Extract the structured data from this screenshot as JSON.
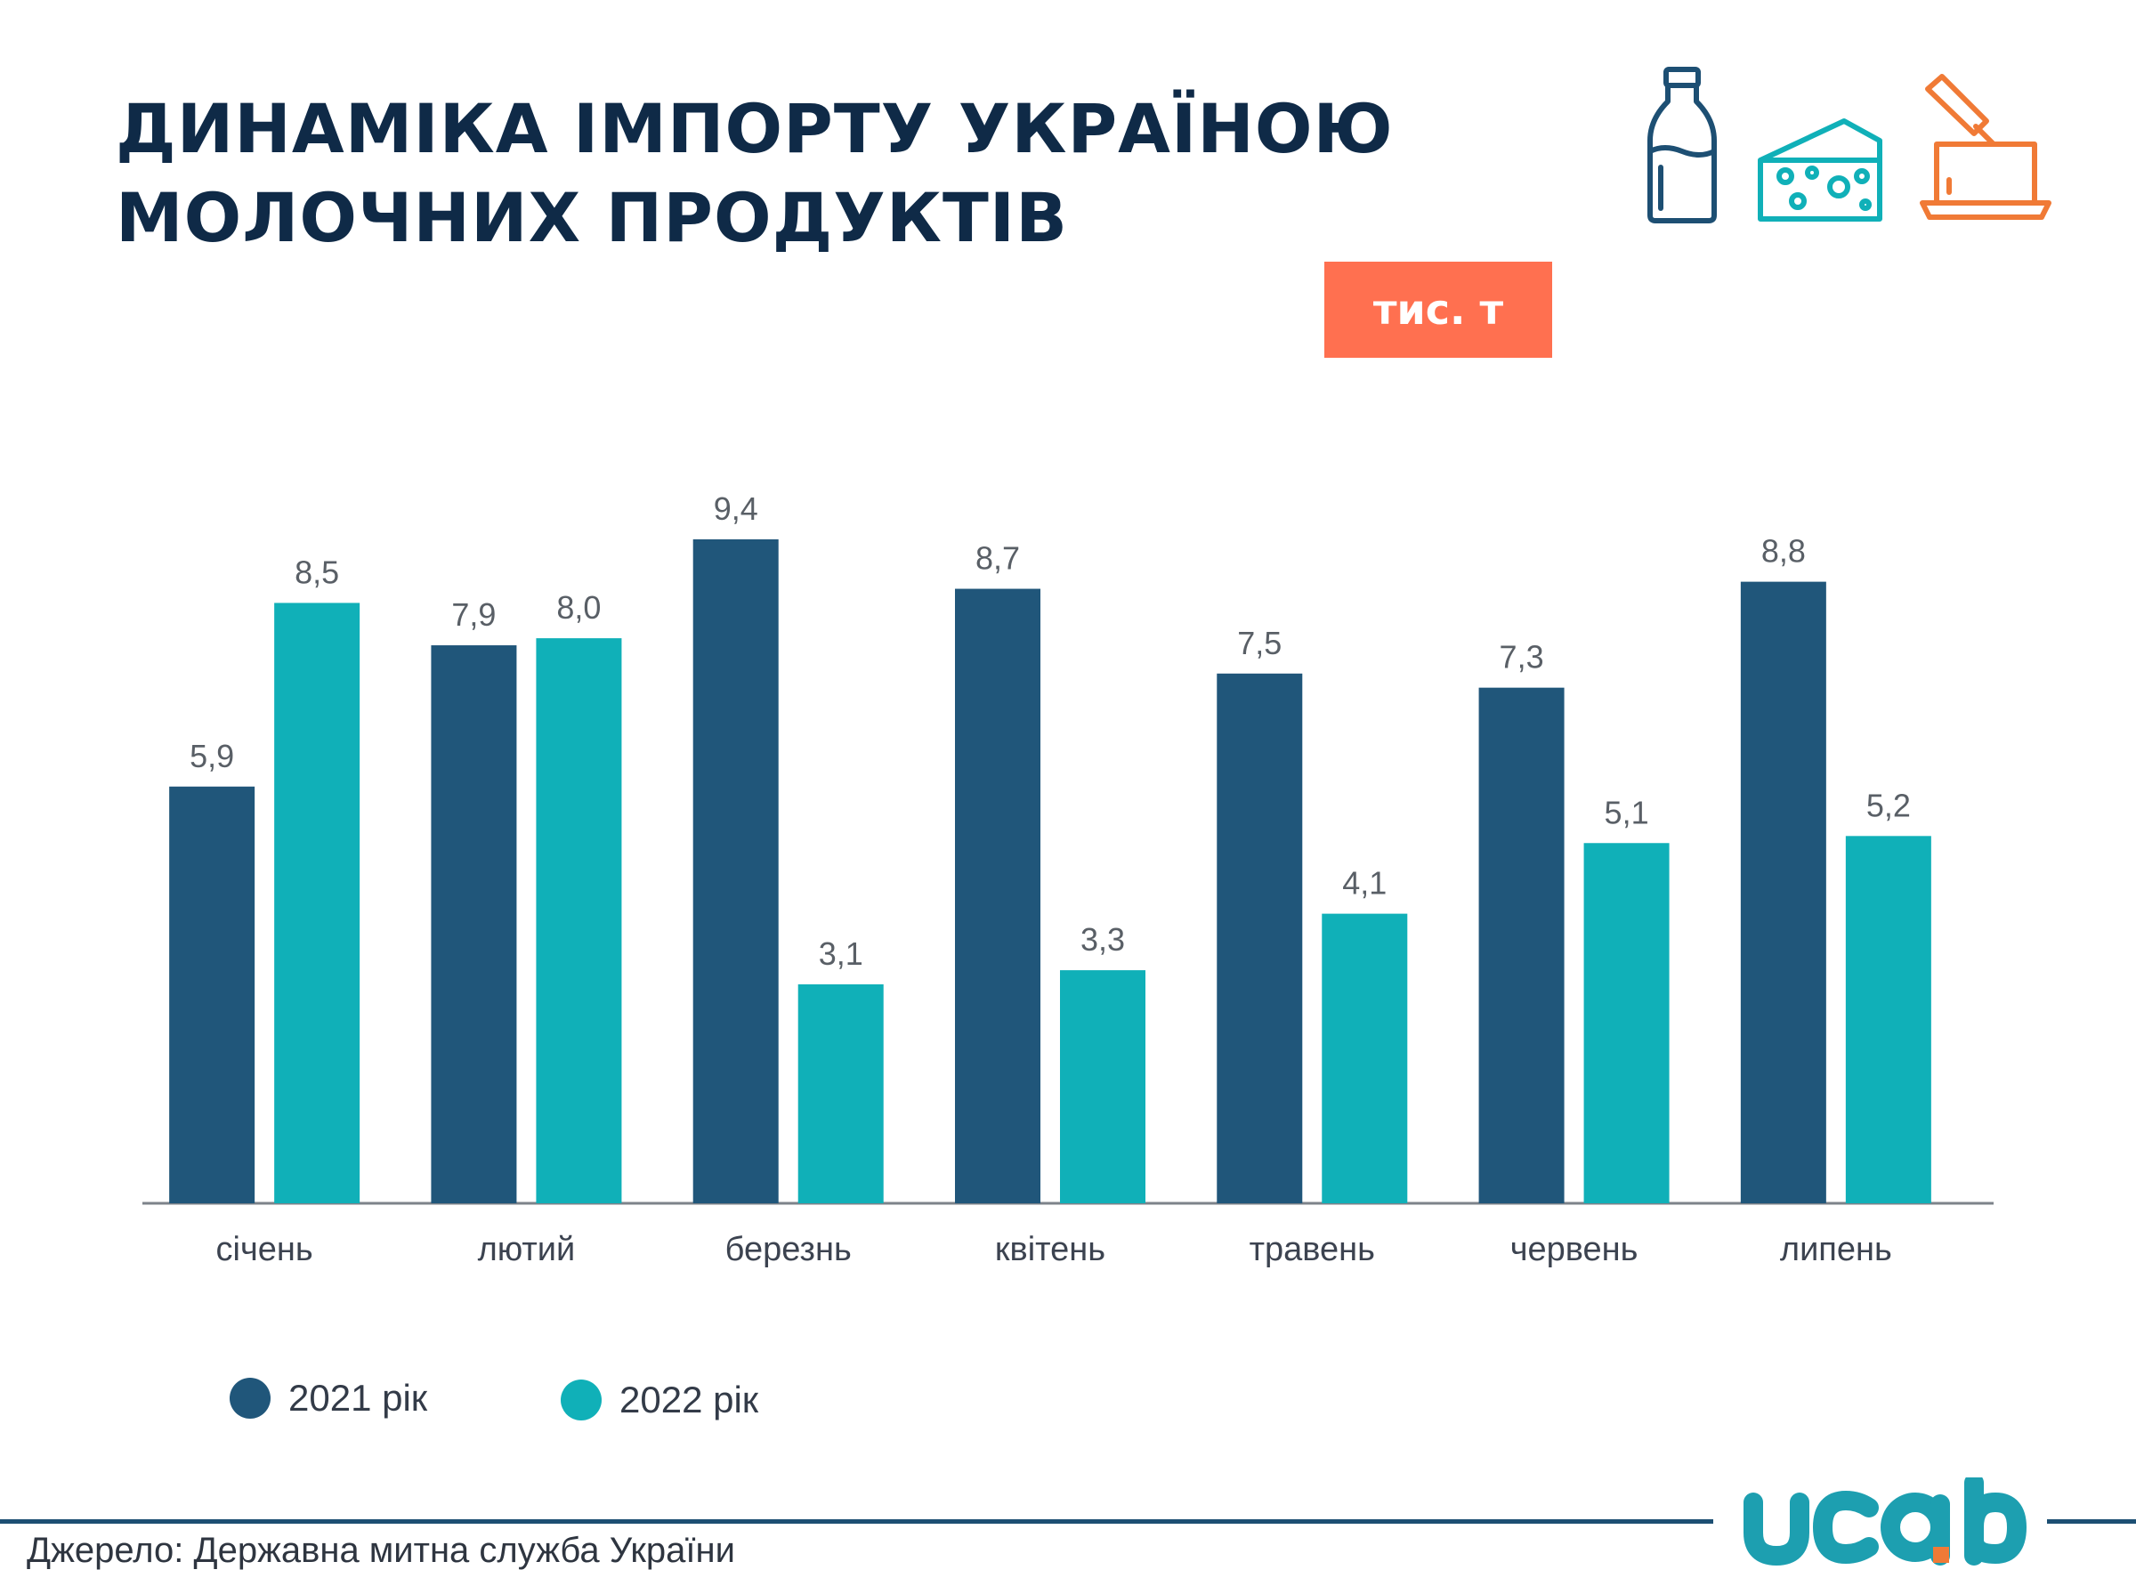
{
  "title": {
    "line1": "ДИНАМІКА ІМПОРТУ УКРАЇНОЮ",
    "line2": "МОЛОЧНИХ ПРОДУКТІВ"
  },
  "unit_badge": "тис. т",
  "icons": [
    "milk-bottle-icon",
    "cheese-icon",
    "butter-icon"
  ],
  "source": "Джерело: Державна митна служба України",
  "logo_text": "ucab",
  "colors": {
    "series_2021": "#20567a",
    "series_2022": "#10b0b8",
    "title": "#0f2a47",
    "badge": "#ff7050",
    "axis": "#7d838a"
  },
  "chart_data": {
    "type": "bar",
    "categories": [
      "січень",
      "лютий",
      "березнь",
      "квітень",
      "травень",
      "червень",
      "липень"
    ],
    "series": [
      {
        "name": "2021 рік",
        "values": [
          5.9,
          7.9,
          9.4,
          8.7,
          7.5,
          7.3,
          8.8
        ],
        "labels": [
          "5,9",
          "7,9",
          "9,4",
          "8,7",
          "7,5",
          "7,3",
          "8,8"
        ]
      },
      {
        "name": "2022 рік",
        "values": [
          8.5,
          8.0,
          3.1,
          3.3,
          4.1,
          5.1,
          5.2
        ],
        "labels": [
          "8,5",
          "8,0",
          "3,1",
          "3,3",
          "4,1",
          "5,1",
          "5,2"
        ]
      }
    ],
    "ylim": [
      0,
      9.4
    ],
    "grid": false,
    "legend": "bottom-left"
  }
}
